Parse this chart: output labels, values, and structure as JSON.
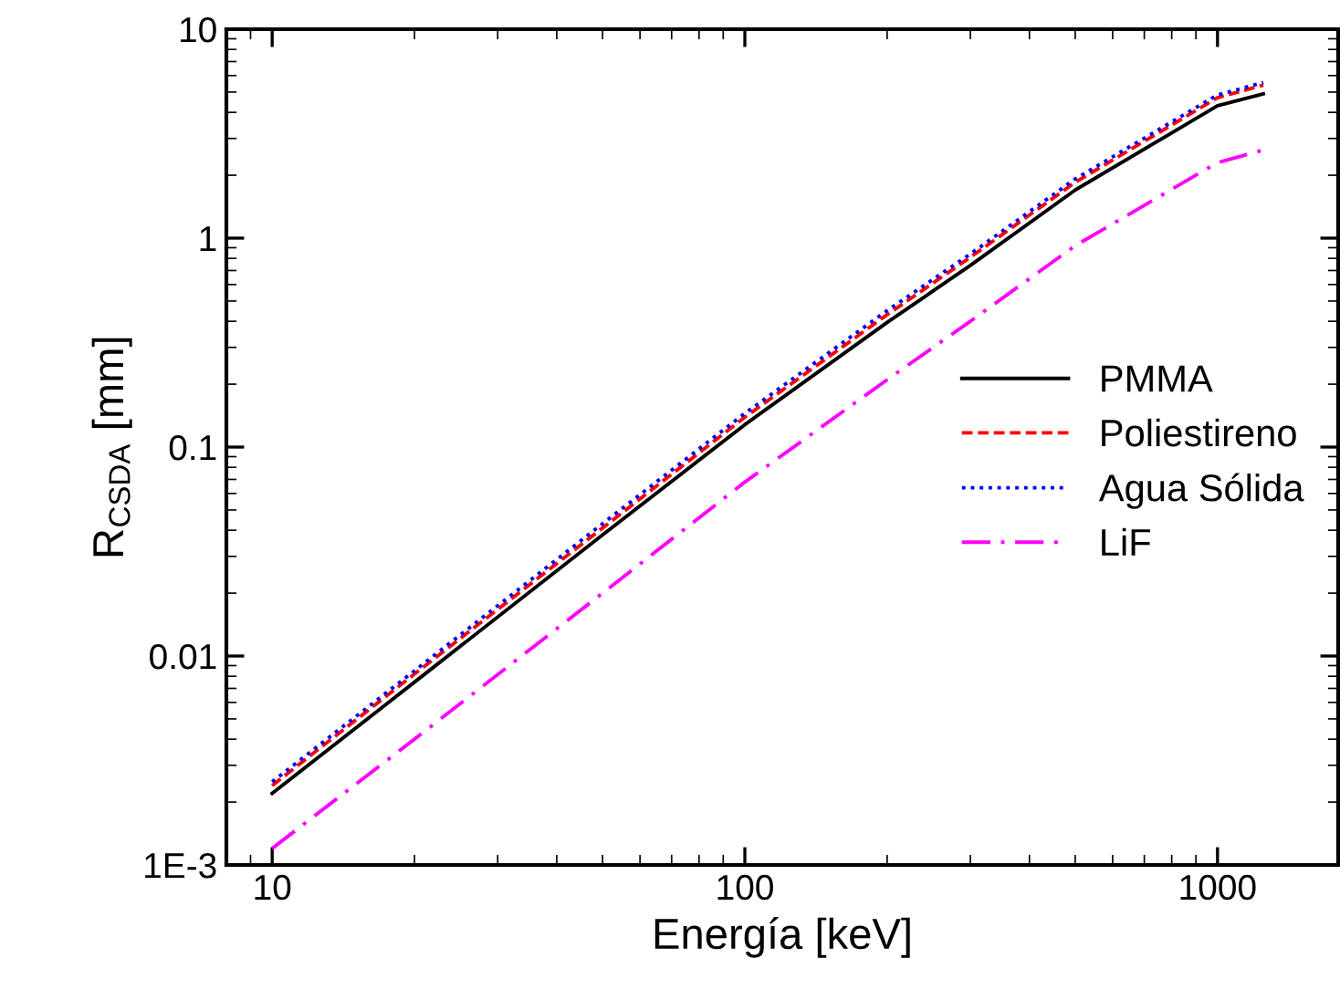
{
  "chart_data": {
    "type": "line",
    "xlabel": "Energía [keV]",
    "ylabel": "R$_{CSDA}$ [mm]",
    "log": "xy",
    "x": [
      10,
      20,
      50,
      100,
      200,
      300,
      500,
      1000,
      1250
    ],
    "xlim": [
      8,
      1800
    ],
    "xticks": [
      10,
      100,
      1000
    ],
    "ylim": [
      0.001,
      10
    ],
    "yticks": [
      {
        "value": 0.001,
        "label": "1E-3"
      },
      0.01,
      0.1,
      1,
      10
    ],
    "grid": false,
    "legend": "right",
    "series": [
      {
        "name": "PMMA",
        "color": "#000000",
        "line_style": "solid",
        "values": [
          0.0022,
          0.0075,
          0.038,
          0.128,
          0.395,
          0.74,
          1.7,
          4.3,
          4.9
        ]
      },
      {
        "name": "Poliestireno",
        "color": "#ff0000",
        "line_style": "dashed",
        "values": [
          0.0024,
          0.0082,
          0.041,
          0.139,
          0.43,
          0.81,
          1.85,
          4.7,
          5.4
        ]
      },
      {
        "name": "Agua Sólida",
        "color": "#0000ff",
        "line_style": "dotted",
        "values": [
          0.0025,
          0.0085,
          0.043,
          0.145,
          0.45,
          0.84,
          1.92,
          4.85,
          5.55
        ]
      },
      {
        "name": "LiF",
        "color": "#ff00ff",
        "line_style": "dashdot",
        "values": [
          0.0012,
          0.004,
          0.02,
          0.068,
          0.21,
          0.4,
          0.92,
          2.3,
          2.64
        ]
      }
    ]
  }
}
